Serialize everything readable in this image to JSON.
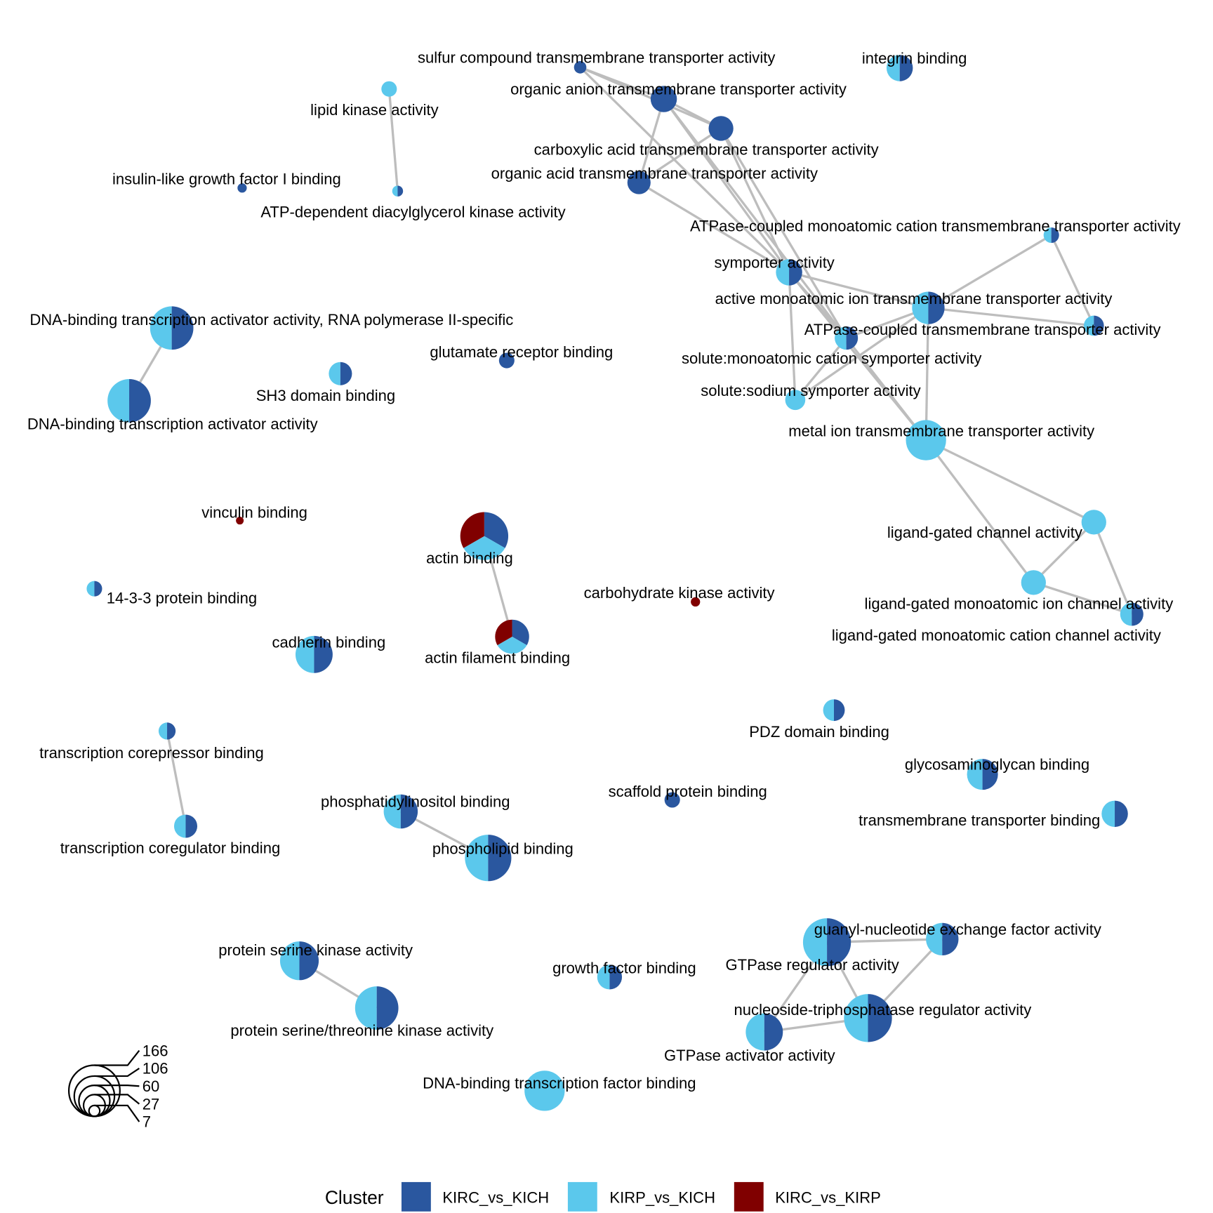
{
  "colors": {
    "KIRC_vs_KICH": "#2A579F",
    "KIRP_vs_KICH": "#5BC8EC",
    "KIRC_vs_KIRP": "#800000",
    "edge": "#BDBDBD"
  },
  "legend": {
    "title": "Cluster",
    "items": [
      "KIRC_vs_KICH",
      "KIRP_vs_KICH",
      "KIRC_vs_KIRP"
    ],
    "size_values": [
      "166",
      "106",
      "60",
      "27",
      "7"
    ]
  },
  "nodes": [
    {
      "id": "sulfur",
      "label": "sulfur compound transmembrane transporter activity",
      "clusters": [
        "KIRC_vs_KICH"
      ]
    },
    {
      "id": "organic_anion",
      "label": "organic anion transmembrane transporter activity",
      "clusters": [
        "KIRC_vs_KICH"
      ]
    },
    {
      "id": "carboxylic",
      "label": "carboxylic acid transmembrane transporter activity",
      "clusters": [
        "KIRC_vs_KICH"
      ]
    },
    {
      "id": "organic_acid",
      "label": "organic acid transmembrane transporter activity",
      "clusters": [
        "KIRC_vs_KICH"
      ]
    },
    {
      "id": "integrin",
      "label": "integrin binding",
      "clusters": [
        "KIRP_vs_KICH",
        "KIRC_vs_KICH"
      ]
    },
    {
      "id": "lipid_kinase",
      "label": "lipid kinase activity",
      "clusters": [
        "KIRP_vs_KICH"
      ]
    },
    {
      "id": "dag_kinase",
      "label": "ATP-dependent diacylglycerol kinase activity",
      "clusters": [
        "KIRP_vs_KICH",
        "KIRC_vs_KICH"
      ]
    },
    {
      "id": "igf1",
      "label": "insulin-like growth factor I binding",
      "clusters": [
        "KIRC_vs_KICH"
      ]
    },
    {
      "id": "atpase_cation",
      "label": "ATPase-coupled monoatomic cation transmembrane transporter activity",
      "clusters": [
        "KIRP_vs_KICH",
        "KIRC_vs_KICH"
      ]
    },
    {
      "id": "symporter",
      "label": "symporter activity",
      "clusters": [
        "KIRP_vs_KICH",
        "KIRC_vs_KICH"
      ]
    },
    {
      "id": "active_ion",
      "label": "active monoatomic ion transmembrane transporter activity",
      "clusters": [
        "KIRP_vs_KICH",
        "KIRC_vs_KICH"
      ]
    },
    {
      "id": "atpase_tt",
      "label": "ATPase-coupled transmembrane transporter activity",
      "clusters": [
        "KIRP_vs_KICH",
        "KIRC_vs_KICH"
      ]
    },
    {
      "id": "solute_cation",
      "label": "solute:monoatomic cation symporter activity",
      "clusters": [
        "KIRP_vs_KICH",
        "KIRC_vs_KICH"
      ]
    },
    {
      "id": "solute_sodium",
      "label": "solute:sodium symporter activity",
      "clusters": [
        "KIRP_vs_KICH"
      ]
    },
    {
      "id": "metal_ion",
      "label": "metal ion transmembrane transporter activity",
      "clusters": [
        "KIRP_vs_KICH"
      ]
    },
    {
      "id": "lg_channel",
      "label": "ligand-gated channel activity",
      "clusters": [
        "KIRP_vs_KICH"
      ]
    },
    {
      "id": "lg_ion",
      "label": "ligand-gated monoatomic ion channel activity",
      "clusters": [
        "KIRP_vs_KICH"
      ]
    },
    {
      "id": "lg_cation",
      "label": "ligand-gated monoatomic cation channel activity",
      "clusters": [
        "KIRP_vs_KICH",
        "KIRC_vs_KICH"
      ]
    },
    {
      "id": "dna_act_pol2",
      "label": "DNA-binding transcription activator activity, RNA polymerase II-specific",
      "clusters": [
        "KIRP_vs_KICH",
        "KIRC_vs_KICH"
      ]
    },
    {
      "id": "dna_act",
      "label": "DNA-binding transcription activator activity",
      "clusters": [
        "KIRP_vs_KICH",
        "KIRC_vs_KICH"
      ]
    },
    {
      "id": "glutamate",
      "label": "glutamate receptor binding",
      "clusters": [
        "KIRC_vs_KICH"
      ]
    },
    {
      "id": "sh3",
      "label": "SH3 domain binding",
      "clusters": [
        "KIRP_vs_KICH",
        "KIRC_vs_KICH"
      ]
    },
    {
      "id": "vinculin",
      "label": "vinculin binding",
      "clusters": [
        "KIRC_vs_KIRP"
      ]
    },
    {
      "id": "actin",
      "label": "actin binding",
      "clusters": [
        "KIRC_vs_KICH",
        "KIRP_vs_KICH",
        "KIRC_vs_KIRP"
      ]
    },
    {
      "id": "actin_filament",
      "label": "actin filament binding",
      "clusters": [
        "KIRC_vs_KICH",
        "KIRP_vs_KICH",
        "KIRC_vs_KIRP"
      ]
    },
    {
      "id": "carb_kinase",
      "label": "carbohydrate kinase activity",
      "clusters": [
        "KIRC_vs_KIRP"
      ]
    },
    {
      "id": "p1433",
      "label": "14-3-3 protein binding",
      "clusters": [
        "KIRP_vs_KICH",
        "KIRC_vs_KICH"
      ]
    },
    {
      "id": "cadherin",
      "label": "cadherin binding",
      "clusters": [
        "KIRP_vs_KICH",
        "KIRC_vs_KICH"
      ]
    },
    {
      "id": "pdz",
      "label": "PDZ domain binding",
      "clusters": [
        "KIRP_vs_KICH",
        "KIRC_vs_KICH"
      ]
    },
    {
      "id": "corepressor",
      "label": "transcription corepressor binding",
      "clusters": [
        "KIRP_vs_KICH",
        "KIRC_vs_KICH"
      ]
    },
    {
      "id": "coregulator",
      "label": "transcription coregulator binding",
      "clusters": [
        "KIRP_vs_KICH",
        "KIRC_vs_KICH"
      ]
    },
    {
      "id": "gag",
      "label": "glycosaminoglycan binding",
      "clusters": [
        "KIRP_vs_KICH",
        "KIRC_vs_KICH"
      ]
    },
    {
      "id": "scaffold",
      "label": "scaffold protein binding",
      "clusters": [
        "KIRC_vs_KICH"
      ]
    },
    {
      "id": "ptdins",
      "label": "phosphatidylinositol binding",
      "clusters": [
        "KIRP_vs_KICH",
        "KIRC_vs_KICH"
      ]
    },
    {
      "id": "tm_binding",
      "label": "transmembrane transporter binding",
      "clusters": [
        "KIRP_vs_KICH",
        "KIRC_vs_KICH"
      ]
    },
    {
      "id": "phospholipid",
      "label": "phospholipid binding",
      "clusters": [
        "KIRP_vs_KICH",
        "KIRC_vs_KICH"
      ]
    },
    {
      "id": "gef",
      "label": "guanyl-nucleotide exchange factor activity",
      "clusters": [
        "KIRP_vs_KICH",
        "KIRC_vs_KICH"
      ]
    },
    {
      "id": "gtpase_reg",
      "label": "GTPase regulator activity",
      "clusters": [
        "KIRP_vs_KICH",
        "KIRC_vs_KICH"
      ]
    },
    {
      "id": "ser_kinase",
      "label": "protein serine kinase activity",
      "clusters": [
        "KIRP_vs_KICH",
        "KIRC_vs_KICH"
      ]
    },
    {
      "id": "growth_factor",
      "label": "growth factor binding",
      "clusters": [
        "KIRP_vs_KICH",
        "KIRC_vs_KICH"
      ]
    },
    {
      "id": "serthr_kinase",
      "label": "protein serine/threonine kinase activity",
      "clusters": [
        "KIRP_vs_KICH",
        "KIRC_vs_KICH"
      ]
    },
    {
      "id": "ntpase_reg",
      "label": "nucleoside-triphosphatase regulator activity",
      "clusters": [
        "KIRP_vs_KICH",
        "KIRC_vs_KICH"
      ]
    },
    {
      "id": "gtpase_act",
      "label": "GTPase activator activity",
      "clusters": [
        "KIRP_vs_KICH",
        "KIRC_vs_KICH"
      ]
    },
    {
      "id": "dna_tf_binding",
      "label": "DNA-binding transcription factor binding",
      "clusters": [
        "KIRP_vs_KICH"
      ]
    }
  ],
  "edges": [
    [
      "sulfur",
      "organic_anion"
    ],
    [
      "sulfur",
      "carboxylic"
    ],
    [
      "sulfur",
      "symporter"
    ],
    [
      "organic_anion",
      "carboxylic"
    ],
    [
      "organic_anion",
      "organic_acid"
    ],
    [
      "organic_anion",
      "symporter"
    ],
    [
      "organic_anion",
      "solute_cation"
    ],
    [
      "carboxylic",
      "organic_acid"
    ],
    [
      "carboxylic",
      "symporter"
    ],
    [
      "carboxylic",
      "solute_cation"
    ],
    [
      "organic_acid",
      "symporter"
    ],
    [
      "lipid_kinase",
      "dag_kinase"
    ],
    [
      "atpase_cation",
      "active_ion"
    ],
    [
      "atpase_cation",
      "atpase_tt"
    ],
    [
      "symporter",
      "active_ion"
    ],
    [
      "symporter",
      "solute_cation"
    ],
    [
      "symporter",
      "solute_sodium"
    ],
    [
      "symporter",
      "metal_ion"
    ],
    [
      "active_ion",
      "atpase_tt"
    ],
    [
      "active_ion",
      "solute_cation"
    ],
    [
      "active_ion",
      "metal_ion"
    ],
    [
      "active_ion",
      "solute_sodium"
    ],
    [
      "solute_cation",
      "solute_sodium"
    ],
    [
      "solute_cation",
      "metal_ion"
    ],
    [
      "metal_ion",
      "lg_channel"
    ],
    [
      "metal_ion",
      "lg_ion"
    ],
    [
      "lg_channel",
      "lg_ion"
    ],
    [
      "lg_channel",
      "lg_cation"
    ],
    [
      "lg_ion",
      "lg_cation"
    ],
    [
      "dna_act_pol2",
      "dna_act"
    ],
    [
      "actin",
      "actin_filament"
    ],
    [
      "corepressor",
      "coregulator"
    ],
    [
      "ptdins",
      "phospholipid"
    ],
    [
      "ser_kinase",
      "serthr_kinase"
    ],
    [
      "gef",
      "gtpase_reg"
    ],
    [
      "gef",
      "ntpase_reg"
    ],
    [
      "gtpase_reg",
      "ntpase_reg"
    ],
    [
      "gtpase_reg",
      "gtpase_act"
    ],
    [
      "gtpase_act",
      "ntpase_reg"
    ]
  ]
}
